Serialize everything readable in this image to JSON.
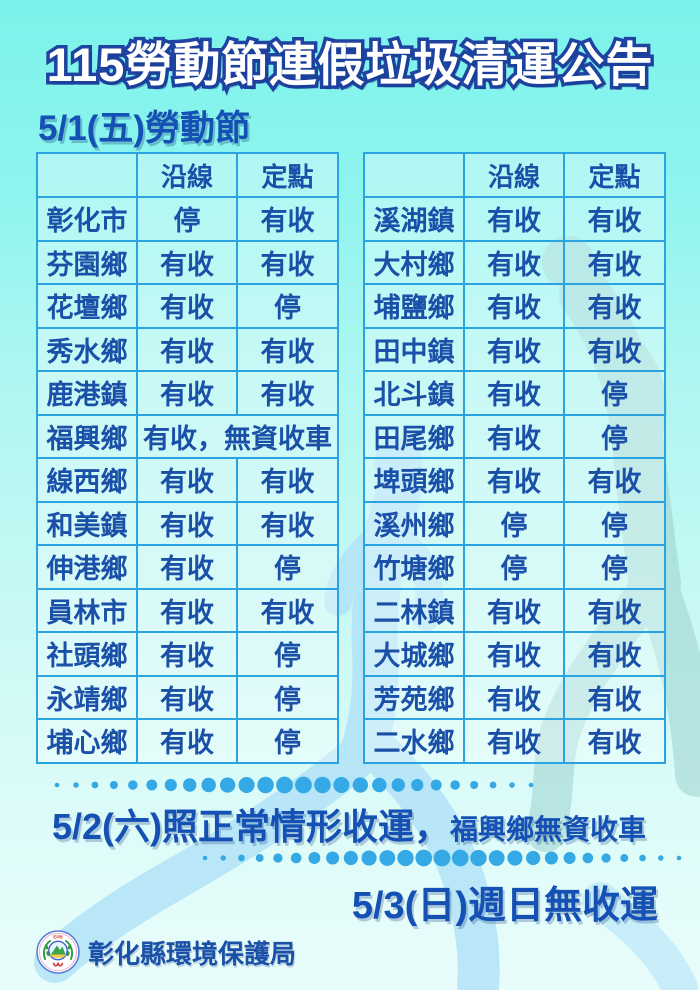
{
  "title": "115勞動節連假垃圾清運公告",
  "sections": {
    "may1": {
      "heading": "5/1(五)勞動節"
    }
  },
  "table": {
    "columns": [
      "",
      "沿線",
      "定點"
    ],
    "left_rows": [
      {
        "name": "彰化市",
        "route": "停",
        "fixed": "有收"
      },
      {
        "name": "芬園鄉",
        "route": "有收",
        "fixed": "有收"
      },
      {
        "name": "花壇鄉",
        "route": "有收",
        "fixed": "停"
      },
      {
        "name": "秀水鄉",
        "route": "有收",
        "fixed": "有收"
      },
      {
        "name": "鹿港鎮",
        "route": "有收",
        "fixed": "有收"
      },
      {
        "name": "福興鄉",
        "merged": "有收，無資收車"
      },
      {
        "name": "線西鄉",
        "route": "有收",
        "fixed": "有收"
      },
      {
        "name": "和美鎮",
        "route": "有收",
        "fixed": "有收"
      },
      {
        "name": "伸港鄉",
        "route": "有收",
        "fixed": "停"
      },
      {
        "name": "員林市",
        "route": "有收",
        "fixed": "有收"
      },
      {
        "name": "社頭鄉",
        "route": "有收",
        "fixed": "停"
      },
      {
        "name": "永靖鄉",
        "route": "有收",
        "fixed": "停"
      },
      {
        "name": "埔心鄉",
        "route": "有收",
        "fixed": "停"
      }
    ],
    "right_rows": [
      {
        "name": "溪湖鎮",
        "route": "有收",
        "fixed": "有收"
      },
      {
        "name": "大村鄉",
        "route": "有收",
        "fixed": "有收"
      },
      {
        "name": "埔鹽鄉",
        "route": "有收",
        "fixed": "有收"
      },
      {
        "name": "田中鎮",
        "route": "有收",
        "fixed": "有收"
      },
      {
        "name": "北斗鎮",
        "route": "有收",
        "fixed": "停"
      },
      {
        "name": "田尾鄉",
        "route": "有收",
        "fixed": "停"
      },
      {
        "name": "埤頭鄉",
        "route": "有收",
        "fixed": "有收"
      },
      {
        "name": "溪州鄉",
        "route": "停",
        "fixed": "停"
      },
      {
        "name": "竹塘鄉",
        "route": "停",
        "fixed": "停"
      },
      {
        "name": "二林鎮",
        "route": "有收",
        "fixed": "有收"
      },
      {
        "name": "大城鄉",
        "route": "有收",
        "fixed": "有收"
      },
      {
        "name": "芳苑鄉",
        "route": "有收",
        "fixed": "有收"
      },
      {
        "name": "二水鄉",
        "route": "有收",
        "fixed": "有收"
      }
    ]
  },
  "notes": {
    "may2": {
      "main": "5/2(六)照正常情形收運，",
      "sub": "福興鄉無資收車"
    },
    "may3": {
      "text": "5/3(日)週日無收運"
    }
  },
  "footer": {
    "org": "彰化縣環境保護局",
    "logo": "epb-seal-icon",
    "logo_text": "EPB"
  },
  "colors": {
    "bg_top": "#7bf3ea",
    "bg_bottom": "#e9fdfb",
    "title_fill": "#ffffff",
    "title_outline": "#1e43a0",
    "heading_blue": "#1550b4",
    "table_text_navy": "#1b50a8",
    "table_border_blue": "#2ba3e0",
    "dot_blue": "#35a9e5",
    "watermark_light_blue": "#b0e2f8",
    "watermark_gray_teal": "#97cfcb"
  }
}
